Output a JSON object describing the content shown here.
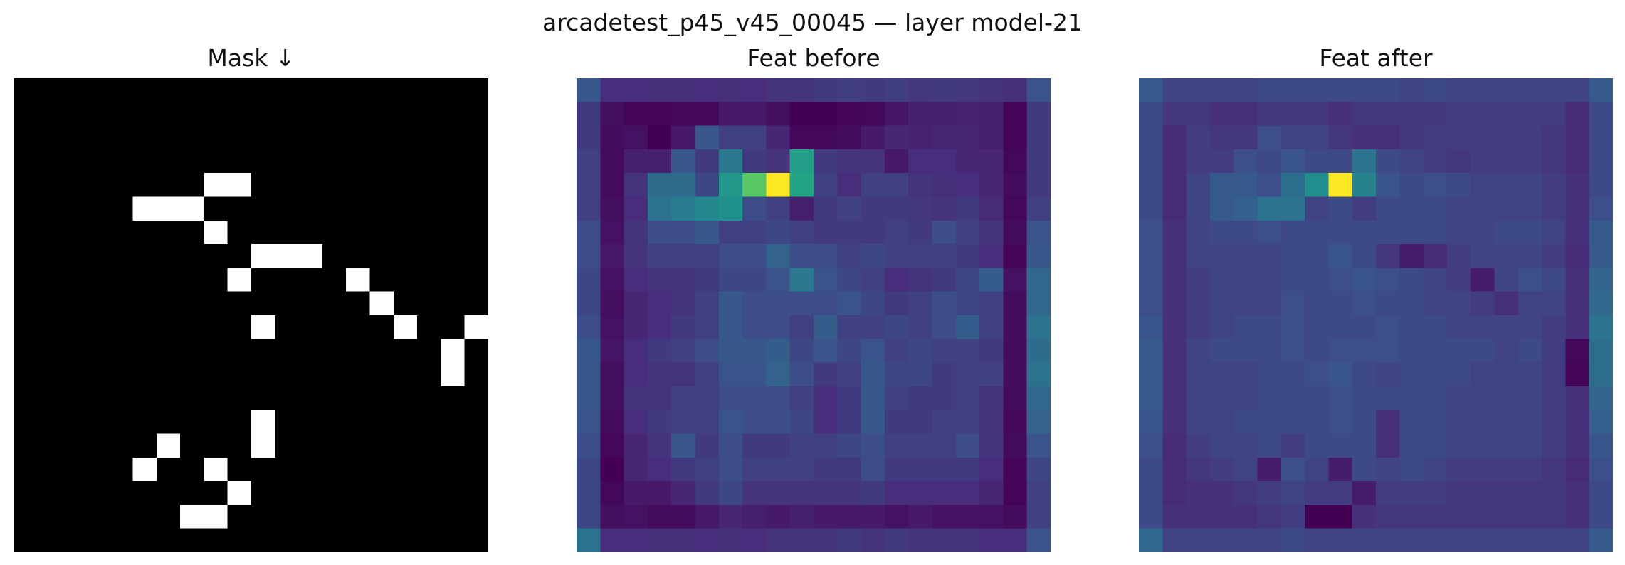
{
  "figure": {
    "suptitle": "arcadetest_p45_v45_00045 — layer model-21"
  },
  "chart_data": [
    {
      "type": "heatmap",
      "title": "Mask ↓",
      "colormap": "gray",
      "grid": false,
      "rows": 20,
      "cols": 20,
      "values": [
        [
          0,
          0,
          0,
          0,
          0,
          0,
          0,
          0,
          0,
          0,
          0,
          0,
          0,
          0,
          0,
          0,
          0,
          0,
          0,
          0
        ],
        [
          0,
          0,
          0,
          0,
          0,
          0,
          0,
          0,
          0,
          0,
          0,
          0,
          0,
          0,
          0,
          0,
          0,
          0,
          0,
          0
        ],
        [
          0,
          0,
          0,
          0,
          0,
          0,
          0,
          0,
          0,
          0,
          0,
          0,
          0,
          0,
          0,
          0,
          0,
          0,
          0,
          0
        ],
        [
          0,
          0,
          0,
          0,
          0,
          0,
          0,
          0,
          0,
          0,
          0,
          0,
          0,
          0,
          0,
          0,
          0,
          0,
          0,
          0
        ],
        [
          0,
          0,
          0,
          0,
          0,
          0,
          0,
          0,
          1,
          1,
          0,
          0,
          0,
          0,
          0,
          0,
          0,
          0,
          0,
          0
        ],
        [
          0,
          0,
          0,
          0,
          0,
          1,
          1,
          1,
          0,
          0,
          0,
          0,
          0,
          0,
          0,
          0,
          0,
          0,
          0,
          0
        ],
        [
          0,
          0,
          0,
          0,
          0,
          0,
          0,
          0,
          1,
          0,
          0,
          0,
          0,
          0,
          0,
          0,
          0,
          0,
          0,
          0
        ],
        [
          0,
          0,
          0,
          0,
          0,
          0,
          0,
          0,
          0,
          0,
          1,
          1,
          1,
          0,
          0,
          0,
          0,
          0,
          0,
          0
        ],
        [
          0,
          0,
          0,
          0,
          0,
          0,
          0,
          0,
          0,
          1,
          0,
          0,
          0,
          0,
          1,
          0,
          0,
          0,
          0,
          0
        ],
        [
          0,
          0,
          0,
          0,
          0,
          0,
          0,
          0,
          0,
          0,
          0,
          0,
          0,
          0,
          0,
          1,
          0,
          0,
          0,
          0
        ],
        [
          0,
          0,
          0,
          0,
          0,
          0,
          0,
          0,
          0,
          0,
          1,
          0,
          0,
          0,
          0,
          0,
          1,
          0,
          0,
          1
        ],
        [
          0,
          0,
          0,
          0,
          0,
          0,
          0,
          0,
          0,
          0,
          0,
          0,
          0,
          0,
          0,
          0,
          0,
          0,
          1,
          0
        ],
        [
          0,
          0,
          0,
          0,
          0,
          0,
          0,
          0,
          0,
          0,
          0,
          0,
          0,
          0,
          0,
          0,
          0,
          0,
          1,
          0
        ],
        [
          0,
          0,
          0,
          0,
          0,
          0,
          0,
          0,
          0,
          0,
          0,
          0,
          0,
          0,
          0,
          0,
          0,
          0,
          0,
          0
        ],
        [
          0,
          0,
          0,
          0,
          0,
          0,
          0,
          0,
          0,
          0,
          1,
          0,
          0,
          0,
          0,
          0,
          0,
          0,
          0,
          0
        ],
        [
          0,
          0,
          0,
          0,
          0,
          0,
          1,
          0,
          0,
          0,
          1,
          0,
          0,
          0,
          0,
          0,
          0,
          0,
          0,
          0
        ],
        [
          0,
          0,
          0,
          0,
          0,
          1,
          0,
          0,
          1,
          0,
          0,
          0,
          0,
          0,
          0,
          0,
          0,
          0,
          0,
          0
        ],
        [
          0,
          0,
          0,
          0,
          0,
          0,
          0,
          0,
          0,
          1,
          0,
          0,
          0,
          0,
          0,
          0,
          0,
          0,
          0,
          0
        ],
        [
          0,
          0,
          0,
          0,
          0,
          0,
          0,
          1,
          1,
          0,
          0,
          0,
          0,
          0,
          0,
          0,
          0,
          0,
          0,
          0
        ],
        [
          0,
          0,
          0,
          0,
          0,
          0,
          0,
          0,
          0,
          0,
          0,
          0,
          0,
          0,
          0,
          0,
          0,
          0,
          0,
          0
        ]
      ]
    },
    {
      "type": "heatmap",
      "title": "Feat before",
      "colormap": "viridis",
      "grid": false,
      "rows": 20,
      "cols": 20,
      "values": [
        [
          0.3,
          0.16,
          0.16,
          0.17,
          0.17,
          0.16,
          0.17,
          0.16,
          0.18,
          0.18,
          0.2,
          0.21,
          0.2,
          0.21,
          0.19,
          0.2,
          0.19,
          0.18,
          0.17,
          0.28
        ],
        [
          0.2,
          0.07,
          0.04,
          0.04,
          0.05,
          0.05,
          0.1,
          0.1,
          0.07,
          0.03,
          0.03,
          0.04,
          0.05,
          0.09,
          0.12,
          0.12,
          0.13,
          0.12,
          0.04,
          0.2
        ],
        [
          0.2,
          0.06,
          0.08,
          0.03,
          0.1,
          0.3,
          0.22,
          0.22,
          0.14,
          0.05,
          0.05,
          0.06,
          0.1,
          0.14,
          0.13,
          0.14,
          0.14,
          0.12,
          0.04,
          0.2
        ],
        [
          0.22,
          0.06,
          0.12,
          0.12,
          0.3,
          0.2,
          0.42,
          0.2,
          0.18,
          0.58,
          0.2,
          0.18,
          0.18,
          0.1,
          0.16,
          0.16,
          0.14,
          0.14,
          0.05,
          0.2
        ],
        [
          0.22,
          0.06,
          0.18,
          0.38,
          0.38,
          0.24,
          0.55,
          0.75,
          1.0,
          0.6,
          0.22,
          0.16,
          0.22,
          0.22,
          0.18,
          0.17,
          0.16,
          0.14,
          0.06,
          0.2
        ],
        [
          0.22,
          0.07,
          0.16,
          0.4,
          0.44,
          0.48,
          0.52,
          0.26,
          0.22,
          0.12,
          0.2,
          0.22,
          0.2,
          0.2,
          0.19,
          0.18,
          0.2,
          0.15,
          0.05,
          0.22
        ],
        [
          0.26,
          0.08,
          0.18,
          0.26,
          0.26,
          0.3,
          0.22,
          0.22,
          0.24,
          0.22,
          0.2,
          0.2,
          0.2,
          0.22,
          0.2,
          0.26,
          0.22,
          0.18,
          0.06,
          0.28
        ],
        [
          0.26,
          0.1,
          0.18,
          0.22,
          0.22,
          0.22,
          0.26,
          0.26,
          0.34,
          0.26,
          0.26,
          0.22,
          0.24,
          0.22,
          0.22,
          0.22,
          0.2,
          0.16,
          0.04,
          0.3
        ],
        [
          0.24,
          0.08,
          0.16,
          0.18,
          0.18,
          0.2,
          0.24,
          0.24,
          0.28,
          0.42,
          0.28,
          0.24,
          0.22,
          0.16,
          0.18,
          0.2,
          0.24,
          0.32,
          0.08,
          0.36
        ],
        [
          0.24,
          0.07,
          0.14,
          0.16,
          0.18,
          0.22,
          0.3,
          0.26,
          0.26,
          0.26,
          0.26,
          0.28,
          0.24,
          0.2,
          0.22,
          0.26,
          0.24,
          0.22,
          0.06,
          0.36
        ],
        [
          0.26,
          0.08,
          0.14,
          0.16,
          0.2,
          0.22,
          0.3,
          0.26,
          0.26,
          0.22,
          0.32,
          0.22,
          0.22,
          0.24,
          0.22,
          0.26,
          0.32,
          0.22,
          0.06,
          0.4
        ],
        [
          0.3,
          0.09,
          0.16,
          0.2,
          0.22,
          0.26,
          0.3,
          0.3,
          0.32,
          0.24,
          0.28,
          0.24,
          0.28,
          0.22,
          0.24,
          0.22,
          0.22,
          0.2,
          0.06,
          0.38
        ],
        [
          0.3,
          0.07,
          0.16,
          0.18,
          0.18,
          0.22,
          0.28,
          0.28,
          0.34,
          0.26,
          0.2,
          0.22,
          0.3,
          0.24,
          0.24,
          0.2,
          0.22,
          0.22,
          0.06,
          0.4
        ],
        [
          0.3,
          0.07,
          0.18,
          0.18,
          0.22,
          0.22,
          0.26,
          0.26,
          0.26,
          0.22,
          0.16,
          0.2,
          0.3,
          0.22,
          0.2,
          0.2,
          0.22,
          0.18,
          0.06,
          0.36
        ],
        [
          0.28,
          0.06,
          0.16,
          0.2,
          0.22,
          0.22,
          0.28,
          0.26,
          0.26,
          0.24,
          0.16,
          0.2,
          0.3,
          0.2,
          0.2,
          0.22,
          0.22,
          0.18,
          0.05,
          0.34
        ],
        [
          0.26,
          0.05,
          0.14,
          0.18,
          0.3,
          0.2,
          0.26,
          0.2,
          0.2,
          0.22,
          0.22,
          0.24,
          0.26,
          0.22,
          0.22,
          0.22,
          0.26,
          0.18,
          0.06,
          0.28
        ],
        [
          0.24,
          0.03,
          0.14,
          0.16,
          0.2,
          0.22,
          0.26,
          0.22,
          0.22,
          0.22,
          0.2,
          0.2,
          0.26,
          0.2,
          0.2,
          0.2,
          0.2,
          0.16,
          0.04,
          0.24
        ],
        [
          0.24,
          0.05,
          0.1,
          0.1,
          0.14,
          0.2,
          0.24,
          0.18,
          0.18,
          0.18,
          0.18,
          0.18,
          0.2,
          0.16,
          0.16,
          0.16,
          0.16,
          0.14,
          0.04,
          0.22
        ],
        [
          0.24,
          0.07,
          0.08,
          0.06,
          0.06,
          0.1,
          0.14,
          0.12,
          0.1,
          0.12,
          0.1,
          0.1,
          0.1,
          0.08,
          0.1,
          0.08,
          0.08,
          0.08,
          0.06,
          0.22
        ],
        [
          0.4,
          0.16,
          0.16,
          0.17,
          0.17,
          0.16,
          0.17,
          0.16,
          0.18,
          0.18,
          0.18,
          0.2,
          0.18,
          0.2,
          0.18,
          0.18,
          0.18,
          0.16,
          0.16,
          0.28
        ]
      ]
    },
    {
      "type": "heatmap",
      "title": "Feat after",
      "colormap": "viridis",
      "grid": false,
      "rows": 20,
      "cols": 20,
      "values": [
        [
          0.3,
          0.22,
          0.22,
          0.22,
          0.22,
          0.24,
          0.24,
          0.24,
          0.24,
          0.24,
          0.24,
          0.22,
          0.24,
          0.22,
          0.22,
          0.22,
          0.22,
          0.22,
          0.22,
          0.3
        ],
        [
          0.24,
          0.18,
          0.18,
          0.16,
          0.16,
          0.18,
          0.18,
          0.18,
          0.16,
          0.18,
          0.18,
          0.18,
          0.18,
          0.2,
          0.2,
          0.2,
          0.2,
          0.2,
          0.14,
          0.24
        ],
        [
          0.24,
          0.14,
          0.2,
          0.18,
          0.18,
          0.26,
          0.22,
          0.22,
          0.18,
          0.16,
          0.16,
          0.18,
          0.2,
          0.2,
          0.2,
          0.2,
          0.2,
          0.18,
          0.14,
          0.24
        ],
        [
          0.24,
          0.14,
          0.2,
          0.2,
          0.26,
          0.24,
          0.28,
          0.24,
          0.24,
          0.4,
          0.24,
          0.22,
          0.2,
          0.18,
          0.2,
          0.2,
          0.2,
          0.18,
          0.14,
          0.24
        ],
        [
          0.24,
          0.14,
          0.22,
          0.3,
          0.3,
          0.26,
          0.38,
          0.5,
          1.0,
          0.46,
          0.28,
          0.24,
          0.26,
          0.24,
          0.22,
          0.22,
          0.22,
          0.2,
          0.16,
          0.24
        ],
        [
          0.24,
          0.14,
          0.22,
          0.3,
          0.32,
          0.4,
          0.4,
          0.22,
          0.24,
          0.2,
          0.24,
          0.24,
          0.24,
          0.22,
          0.22,
          0.22,
          0.22,
          0.2,
          0.16,
          0.26
        ],
        [
          0.26,
          0.16,
          0.22,
          0.24,
          0.24,
          0.26,
          0.24,
          0.24,
          0.24,
          0.24,
          0.24,
          0.24,
          0.24,
          0.22,
          0.22,
          0.24,
          0.24,
          0.22,
          0.16,
          0.3
        ],
        [
          0.26,
          0.16,
          0.22,
          0.22,
          0.22,
          0.22,
          0.24,
          0.24,
          0.28,
          0.24,
          0.18,
          0.1,
          0.14,
          0.2,
          0.22,
          0.22,
          0.22,
          0.2,
          0.14,
          0.3
        ],
        [
          0.26,
          0.16,
          0.2,
          0.22,
          0.22,
          0.22,
          0.24,
          0.24,
          0.26,
          0.28,
          0.26,
          0.24,
          0.22,
          0.2,
          0.1,
          0.22,
          0.26,
          0.24,
          0.16,
          0.34
        ],
        [
          0.26,
          0.16,
          0.2,
          0.22,
          0.22,
          0.22,
          0.26,
          0.24,
          0.24,
          0.26,
          0.24,
          0.24,
          0.22,
          0.22,
          0.2,
          0.16,
          0.22,
          0.22,
          0.16,
          0.36
        ],
        [
          0.28,
          0.16,
          0.2,
          0.22,
          0.24,
          0.24,
          0.26,
          0.24,
          0.24,
          0.24,
          0.26,
          0.24,
          0.24,
          0.22,
          0.22,
          0.22,
          0.22,
          0.2,
          0.16,
          0.4
        ],
        [
          0.3,
          0.16,
          0.22,
          0.24,
          0.24,
          0.24,
          0.26,
          0.24,
          0.26,
          0.26,
          0.26,
          0.24,
          0.24,
          0.24,
          0.24,
          0.22,
          0.24,
          0.2,
          0.04,
          0.38
        ],
        [
          0.3,
          0.16,
          0.22,
          0.22,
          0.22,
          0.24,
          0.24,
          0.26,
          0.28,
          0.24,
          0.22,
          0.24,
          0.24,
          0.24,
          0.22,
          0.22,
          0.22,
          0.2,
          0.03,
          0.38
        ],
        [
          0.3,
          0.16,
          0.22,
          0.22,
          0.22,
          0.24,
          0.24,
          0.24,
          0.26,
          0.24,
          0.24,
          0.24,
          0.24,
          0.22,
          0.22,
          0.22,
          0.22,
          0.2,
          0.16,
          0.34
        ],
        [
          0.28,
          0.16,
          0.22,
          0.22,
          0.24,
          0.24,
          0.24,
          0.24,
          0.26,
          0.24,
          0.16,
          0.24,
          0.24,
          0.22,
          0.22,
          0.22,
          0.22,
          0.2,
          0.16,
          0.32
        ],
        [
          0.26,
          0.14,
          0.2,
          0.22,
          0.22,
          0.24,
          0.2,
          0.24,
          0.24,
          0.24,
          0.16,
          0.24,
          0.24,
          0.22,
          0.22,
          0.22,
          0.22,
          0.2,
          0.16,
          0.28
        ],
        [
          0.24,
          0.14,
          0.18,
          0.2,
          0.22,
          0.1,
          0.26,
          0.22,
          0.1,
          0.24,
          0.22,
          0.24,
          0.22,
          0.2,
          0.2,
          0.2,
          0.2,
          0.18,
          0.14,
          0.26
        ],
        [
          0.24,
          0.14,
          0.16,
          0.16,
          0.18,
          0.2,
          0.22,
          0.2,
          0.2,
          0.1,
          0.2,
          0.2,
          0.2,
          0.18,
          0.18,
          0.18,
          0.18,
          0.18,
          0.16,
          0.24
        ],
        [
          0.24,
          0.16,
          0.16,
          0.16,
          0.16,
          0.18,
          0.2,
          0.02,
          0.02,
          0.16,
          0.18,
          0.18,
          0.18,
          0.18,
          0.18,
          0.18,
          0.18,
          0.18,
          0.16,
          0.24
        ],
        [
          0.36,
          0.22,
          0.22,
          0.22,
          0.22,
          0.22,
          0.24,
          0.22,
          0.22,
          0.22,
          0.22,
          0.22,
          0.22,
          0.22,
          0.22,
          0.22,
          0.22,
          0.22,
          0.22,
          0.3
        ]
      ]
    }
  ]
}
